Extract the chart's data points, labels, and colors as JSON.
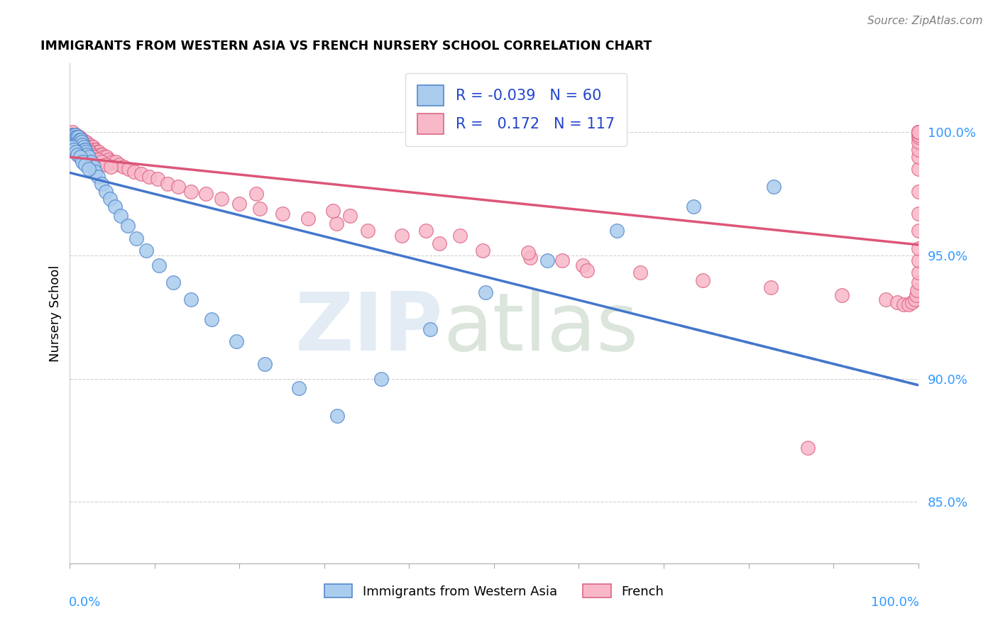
{
  "title": "IMMIGRANTS FROM WESTERN ASIA VS FRENCH NURSERY SCHOOL CORRELATION CHART",
  "source": "Source: ZipAtlas.com",
  "ylabel": "Nursery School",
  "ytick_labels": [
    "85.0%",
    "90.0%",
    "95.0%",
    "100.0%"
  ],
  "ytick_values": [
    0.85,
    0.9,
    0.95,
    1.0
  ],
  "ymin": 0.825,
  "ymax": 1.028,
  "xmin": 0.0,
  "xmax": 1.0,
  "legend_r_blue": "-0.039",
  "legend_n_blue": "60",
  "legend_r_pink": "0.172",
  "legend_n_pink": "117",
  "blue_fill": "#aaccee",
  "blue_edge": "#5588cc",
  "pink_fill": "#f8b8c8",
  "pink_edge": "#dd6688",
  "blue_line_col": "#4477cc",
  "pink_line_col": "#dd5577",
  "title_fontsize": 12.5,
  "label_fontsize": 13,
  "tick_fontsize": 13,
  "legend_fontsize": 15,
  "scatter_size": 200,
  "blue_x": [
    0.003,
    0.004,
    0.004,
    0.005,
    0.005,
    0.006,
    0.006,
    0.007,
    0.007,
    0.008,
    0.009,
    0.01,
    0.01,
    0.011,
    0.012,
    0.013,
    0.013,
    0.014,
    0.015,
    0.016,
    0.017,
    0.018,
    0.019,
    0.02,
    0.022,
    0.025,
    0.028,
    0.03,
    0.033,
    0.037,
    0.042,
    0.047,
    0.053,
    0.06,
    0.068,
    0.078,
    0.09,
    0.105,
    0.122,
    0.143,
    0.167,
    0.196,
    0.23,
    0.27,
    0.315,
    0.367,
    0.425,
    0.49,
    0.563,
    0.645,
    0.735,
    0.83,
    0.003,
    0.005,
    0.007,
    0.009,
    0.012,
    0.015,
    0.018,
    0.022
  ],
  "blue_y": [
    0.999,
    0.998,
    0.997,
    0.999,
    0.998,
    0.997,
    0.999,
    0.998,
    0.997,
    0.998,
    0.997,
    0.998,
    0.996,
    0.997,
    0.996,
    0.997,
    0.995,
    0.996,
    0.995,
    0.994,
    0.993,
    0.993,
    0.992,
    0.991,
    0.99,
    0.988,
    0.986,
    0.984,
    0.982,
    0.979,
    0.976,
    0.973,
    0.97,
    0.966,
    0.962,
    0.957,
    0.952,
    0.946,
    0.939,
    0.932,
    0.924,
    0.915,
    0.906,
    0.896,
    0.885,
    0.9,
    0.92,
    0.935,
    0.948,
    0.96,
    0.97,
    0.978,
    0.994,
    0.993,
    0.992,
    0.991,
    0.99,
    0.988,
    0.987,
    0.985
  ],
  "pink_x": [
    0.003,
    0.004,
    0.005,
    0.006,
    0.007,
    0.008,
    0.009,
    0.01,
    0.011,
    0.012,
    0.013,
    0.014,
    0.015,
    0.016,
    0.017,
    0.018,
    0.019,
    0.02,
    0.021,
    0.022,
    0.023,
    0.024,
    0.025,
    0.026,
    0.027,
    0.028,
    0.029,
    0.03,
    0.032,
    0.034,
    0.036,
    0.038,
    0.04,
    0.043,
    0.046,
    0.05,
    0.054,
    0.058,
    0.063,
    0.069,
    0.076,
    0.084,
    0.093,
    0.103,
    0.115,
    0.128,
    0.143,
    0.16,
    0.179,
    0.2,
    0.224,
    0.251,
    0.281,
    0.314,
    0.351,
    0.391,
    0.436,
    0.487,
    0.543,
    0.605,
    0.672,
    0.746,
    0.826,
    0.91,
    0.962,
    0.975,
    0.983,
    0.989,
    0.993,
    0.996,
    0.998,
    0.999,
    1.0,
    1.0,
    1.0,
    1.0,
    1.0,
    1.0,
    1.0,
    1.0,
    1.0,
    1.0,
    1.0,
    1.0,
    1.0,
    1.0,
    1.0,
    1.0,
    1.0,
    1.0,
    0.003,
    0.005,
    0.007,
    0.009,
    0.011,
    0.013,
    0.015,
    0.017,
    0.019,
    0.021,
    0.023,
    0.025,
    0.027,
    0.03,
    0.033,
    0.037,
    0.042,
    0.048,
    0.22,
    0.31,
    0.42,
    0.54,
    0.33,
    0.46,
    0.58,
    0.61,
    0.87
  ],
  "pink_y": [
    1.0,
    0.999,
    0.999,
    0.999,
    0.999,
    0.998,
    0.998,
    0.998,
    0.998,
    0.997,
    0.997,
    0.997,
    0.997,
    0.996,
    0.996,
    0.996,
    0.996,
    0.995,
    0.995,
    0.995,
    0.995,
    0.994,
    0.994,
    0.994,
    0.994,
    0.993,
    0.993,
    0.993,
    0.992,
    0.992,
    0.991,
    0.991,
    0.99,
    0.99,
    0.989,
    0.988,
    0.988,
    0.987,
    0.986,
    0.985,
    0.984,
    0.983,
    0.982,
    0.981,
    0.979,
    0.978,
    0.976,
    0.975,
    0.973,
    0.971,
    0.969,
    0.967,
    0.965,
    0.963,
    0.96,
    0.958,
    0.955,
    0.952,
    0.949,
    0.946,
    0.943,
    0.94,
    0.937,
    0.934,
    0.932,
    0.931,
    0.93,
    0.93,
    0.931,
    0.932,
    0.934,
    0.936,
    0.939,
    0.943,
    0.948,
    0.953,
    0.96,
    0.967,
    0.976,
    0.985,
    0.99,
    0.993,
    0.996,
    0.998,
    0.999,
    1.0,
    1.0,
    1.0,
    1.0,
    1.0,
    0.999,
    0.998,
    0.998,
    0.997,
    0.996,
    0.996,
    0.995,
    0.994,
    0.993,
    0.993,
    0.992,
    0.991,
    0.99,
    0.989,
    0.989,
    0.988,
    0.987,
    0.986,
    0.975,
    0.968,
    0.96,
    0.951,
    0.966,
    0.958,
    0.948,
    0.944,
    0.872
  ]
}
